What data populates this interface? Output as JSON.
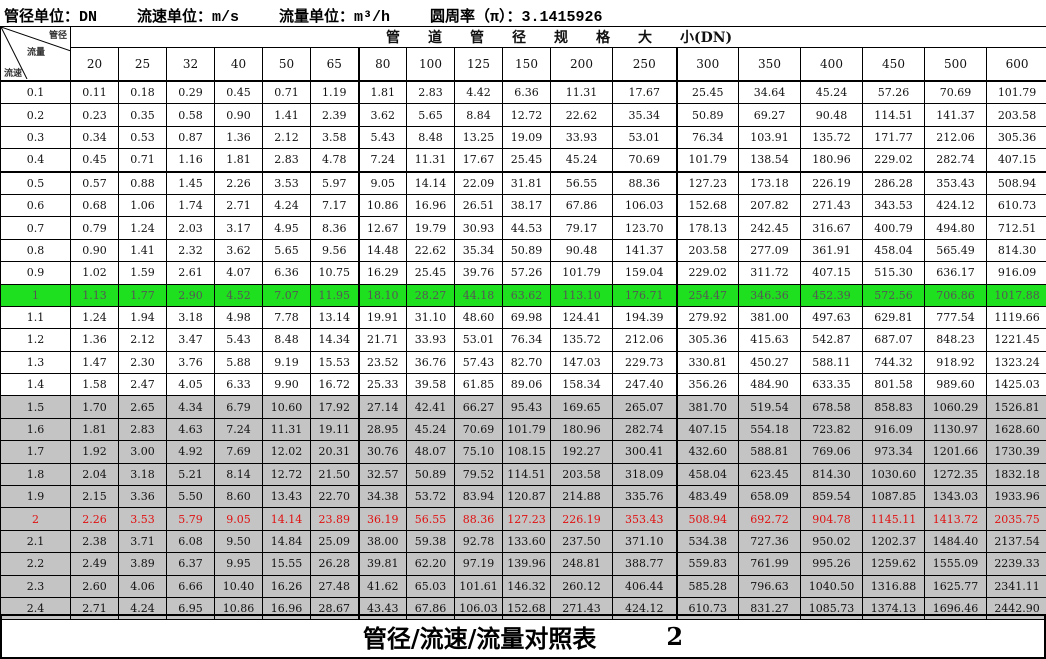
{
  "header": {
    "diameter_unit": "管径单位：DN",
    "velocity_unit": "流速单位：m/s",
    "flow_unit": "流量单位：m³/h",
    "pi": "圆周率（π）：3.1415926"
  },
  "table": {
    "corner_labels": {
      "diameter": "管径",
      "flow": "流量",
      "velocity": "流速"
    },
    "group_header": "管　　道　　管　　径　　规　　格　　大　　小(DN)",
    "columns": [
      "20",
      "25",
      "32",
      "40",
      "50",
      "65",
      "80",
      "100",
      "125",
      "150",
      "200",
      "250",
      "300",
      "350",
      "400",
      "450",
      "500",
      "600"
    ],
    "rows": [
      {
        "v": "0.1",
        "cells": [
          "0.11",
          "0.18",
          "0.29",
          "0.45",
          "0.71",
          "1.19",
          "1.81",
          "2.83",
          "4.42",
          "6.36",
          "11.31",
          "17.67",
          "25.45",
          "34.64",
          "45.24",
          "57.26",
          "70.69",
          "101.79"
        ]
      },
      {
        "v": "0.2",
        "cells": [
          "0.23",
          "0.35",
          "0.58",
          "0.90",
          "1.41",
          "2.39",
          "3.62",
          "5.65",
          "8.84",
          "12.72",
          "22.62",
          "35.34",
          "50.89",
          "69.27",
          "90.48",
          "114.51",
          "141.37",
          "203.58"
        ]
      },
      {
        "v": "0.3",
        "cells": [
          "0.34",
          "0.53",
          "0.87",
          "1.36",
          "2.12",
          "3.58",
          "5.43",
          "8.48",
          "13.25",
          "19.09",
          "33.93",
          "53.01",
          "76.34",
          "103.91",
          "135.72",
          "171.77",
          "212.06",
          "305.36"
        ]
      },
      {
        "v": "0.4",
        "cells": [
          "0.45",
          "0.71",
          "1.16",
          "1.81",
          "2.83",
          "4.78",
          "7.24",
          "11.31",
          "17.67",
          "25.45",
          "45.24",
          "70.69",
          "101.79",
          "138.54",
          "180.96",
          "229.02",
          "282.74",
          "407.15"
        ]
      },
      {
        "v": "0.5",
        "cells": [
          "0.57",
          "0.88",
          "1.45",
          "2.26",
          "3.53",
          "5.97",
          "9.05",
          "14.14",
          "22.09",
          "31.81",
          "56.55",
          "88.36",
          "127.23",
          "173.18",
          "226.19",
          "286.28",
          "353.43",
          "508.94"
        ]
      },
      {
        "v": "0.6",
        "cells": [
          "0.68",
          "1.06",
          "1.74",
          "2.71",
          "4.24",
          "7.17",
          "10.86",
          "16.96",
          "26.51",
          "38.17",
          "67.86",
          "106.03",
          "152.68",
          "207.82",
          "271.43",
          "343.53",
          "424.12",
          "610.73"
        ]
      },
      {
        "v": "0.7",
        "cells": [
          "0.79",
          "1.24",
          "2.03",
          "3.17",
          "4.95",
          "8.36",
          "12.67",
          "19.79",
          "30.93",
          "44.53",
          "79.17",
          "123.70",
          "178.13",
          "242.45",
          "316.67",
          "400.79",
          "494.80",
          "712.51"
        ]
      },
      {
        "v": "0.8",
        "cells": [
          "0.90",
          "1.41",
          "2.32",
          "3.62",
          "5.65",
          "9.56",
          "14.48",
          "22.62",
          "35.34",
          "50.89",
          "90.48",
          "141.37",
          "203.58",
          "277.09",
          "361.91",
          "458.04",
          "565.49",
          "814.30"
        ]
      },
      {
        "v": "0.9",
        "cells": [
          "1.02",
          "1.59",
          "2.61",
          "4.07",
          "6.36",
          "10.75",
          "16.29",
          "25.45",
          "39.76",
          "57.26",
          "101.79",
          "159.04",
          "229.02",
          "311.72",
          "407.15",
          "515.30",
          "636.17",
          "916.09"
        ]
      },
      {
        "v": "1",
        "cells": [
          "1.13",
          "1.77",
          "2.90",
          "4.52",
          "7.07",
          "11.95",
          "18.10",
          "28.27",
          "44.18",
          "63.62",
          "113.10",
          "176.71",
          "254.47",
          "346.36",
          "452.39",
          "572.56",
          "706.86",
          "1017.88"
        ]
      },
      {
        "v": "1.1",
        "cells": [
          "1.24",
          "1.94",
          "3.18",
          "4.98",
          "7.78",
          "13.14",
          "19.91",
          "31.10",
          "48.60",
          "69.98",
          "124.41",
          "194.39",
          "279.92",
          "381.00",
          "497.63",
          "629.81",
          "777.54",
          "1119.66"
        ]
      },
      {
        "v": "1.2",
        "cells": [
          "1.36",
          "2.12",
          "3.47",
          "5.43",
          "8.48",
          "14.34",
          "21.71",
          "33.93",
          "53.01",
          "76.34",
          "135.72",
          "212.06",
          "305.36",
          "415.63",
          "542.87",
          "687.07",
          "848.23",
          "1221.45"
        ]
      },
      {
        "v": "1.3",
        "cells": [
          "1.47",
          "2.30",
          "3.76",
          "5.88",
          "9.19",
          "15.53",
          "23.52",
          "36.76",
          "57.43",
          "82.70",
          "147.03",
          "229.73",
          "330.81",
          "450.27",
          "588.11",
          "744.32",
          "918.92",
          "1323.24"
        ]
      },
      {
        "v": "1.4",
        "cells": [
          "1.58",
          "2.47",
          "4.05",
          "6.33",
          "9.90",
          "16.72",
          "25.33",
          "39.58",
          "61.85",
          "89.06",
          "158.34",
          "247.40",
          "356.26",
          "484.90",
          "633.35",
          "801.58",
          "989.60",
          "1425.03"
        ]
      },
      {
        "v": "1.5",
        "cells": [
          "1.70",
          "2.65",
          "4.34",
          "6.79",
          "10.60",
          "17.92",
          "27.14",
          "42.41",
          "66.27",
          "95.43",
          "169.65",
          "265.07",
          "381.70",
          "519.54",
          "678.58",
          "858.83",
          "1060.29",
          "1526.81"
        ]
      },
      {
        "v": "1.6",
        "cells": [
          "1.81",
          "2.83",
          "4.63",
          "7.24",
          "11.31",
          "19.11",
          "28.95",
          "45.24",
          "70.69",
          "101.79",
          "180.96",
          "282.74",
          "407.15",
          "554.18",
          "723.82",
          "916.09",
          "1130.97",
          "1628.60"
        ]
      },
      {
        "v": "1.7",
        "cells": [
          "1.92",
          "3.00",
          "4.92",
          "7.69",
          "12.02",
          "20.31",
          "30.76",
          "48.07",
          "75.10",
          "108.15",
          "192.27",
          "300.41",
          "432.60",
          "588.81",
          "769.06",
          "973.34",
          "1201.66",
          "1730.39"
        ]
      },
      {
        "v": "1.8",
        "cells": [
          "2.04",
          "3.18",
          "5.21",
          "8.14",
          "12.72",
          "21.50",
          "32.57",
          "50.89",
          "79.52",
          "114.51",
          "203.58",
          "318.09",
          "458.04",
          "623.45",
          "814.30",
          "1030.60",
          "1272.35",
          "1832.18"
        ]
      },
      {
        "v": "1.9",
        "cells": [
          "2.15",
          "3.36",
          "5.50",
          "8.60",
          "13.43",
          "22.70",
          "34.38",
          "53.72",
          "83.94",
          "120.87",
          "214.88",
          "335.76",
          "483.49",
          "658.09",
          "859.54",
          "1087.85",
          "1343.03",
          "1933.96"
        ]
      },
      {
        "v": "2",
        "cells": [
          "2.26",
          "3.53",
          "5.79",
          "9.05",
          "14.14",
          "23.89",
          "36.19",
          "56.55",
          "88.36",
          "127.23",
          "226.19",
          "353.43",
          "508.94",
          "692.72",
          "904.78",
          "1145.11",
          "1413.72",
          "2035.75"
        ]
      },
      {
        "v": "2.1",
        "cells": [
          "2.38",
          "3.71",
          "6.08",
          "9.50",
          "14.84",
          "25.09",
          "38.00",
          "59.38",
          "92.78",
          "133.60",
          "237.50",
          "371.10",
          "534.38",
          "727.36",
          "950.02",
          "1202.37",
          "1484.40",
          "2137.54"
        ]
      },
      {
        "v": "2.2",
        "cells": [
          "2.49",
          "3.89",
          "6.37",
          "9.95",
          "15.55",
          "26.28",
          "39.81",
          "62.20",
          "97.19",
          "139.96",
          "248.81",
          "388.77",
          "559.83",
          "761.99",
          "995.26",
          "1259.62",
          "1555.09",
          "2239.33"
        ]
      },
      {
        "v": "2.3",
        "cells": [
          "2.60",
          "4.06",
          "6.66",
          "10.40",
          "16.26",
          "27.48",
          "41.62",
          "65.03",
          "101.61",
          "146.32",
          "260.12",
          "406.44",
          "585.28",
          "796.63",
          "1040.50",
          "1316.88",
          "1625.77",
          "2341.11"
        ]
      },
      {
        "v": "2.4",
        "cells": [
          "2.71",
          "4.24",
          "6.95",
          "10.86",
          "16.96",
          "28.67",
          "43.43",
          "67.86",
          "106.03",
          "152.68",
          "271.43",
          "424.12",
          "610.73",
          "831.27",
          "1085.73",
          "1374.13",
          "1696.46",
          "2442.90"
        ]
      }
    ],
    "highlight_colors": {
      "velocity_1_row": "#1fe01f",
      "high_velocity_rows": "#c4c4c4",
      "velocity_2_text": "#e01010"
    }
  },
  "footer": {
    "title": "管径/流速/流量对照表",
    "page": "2"
  }
}
